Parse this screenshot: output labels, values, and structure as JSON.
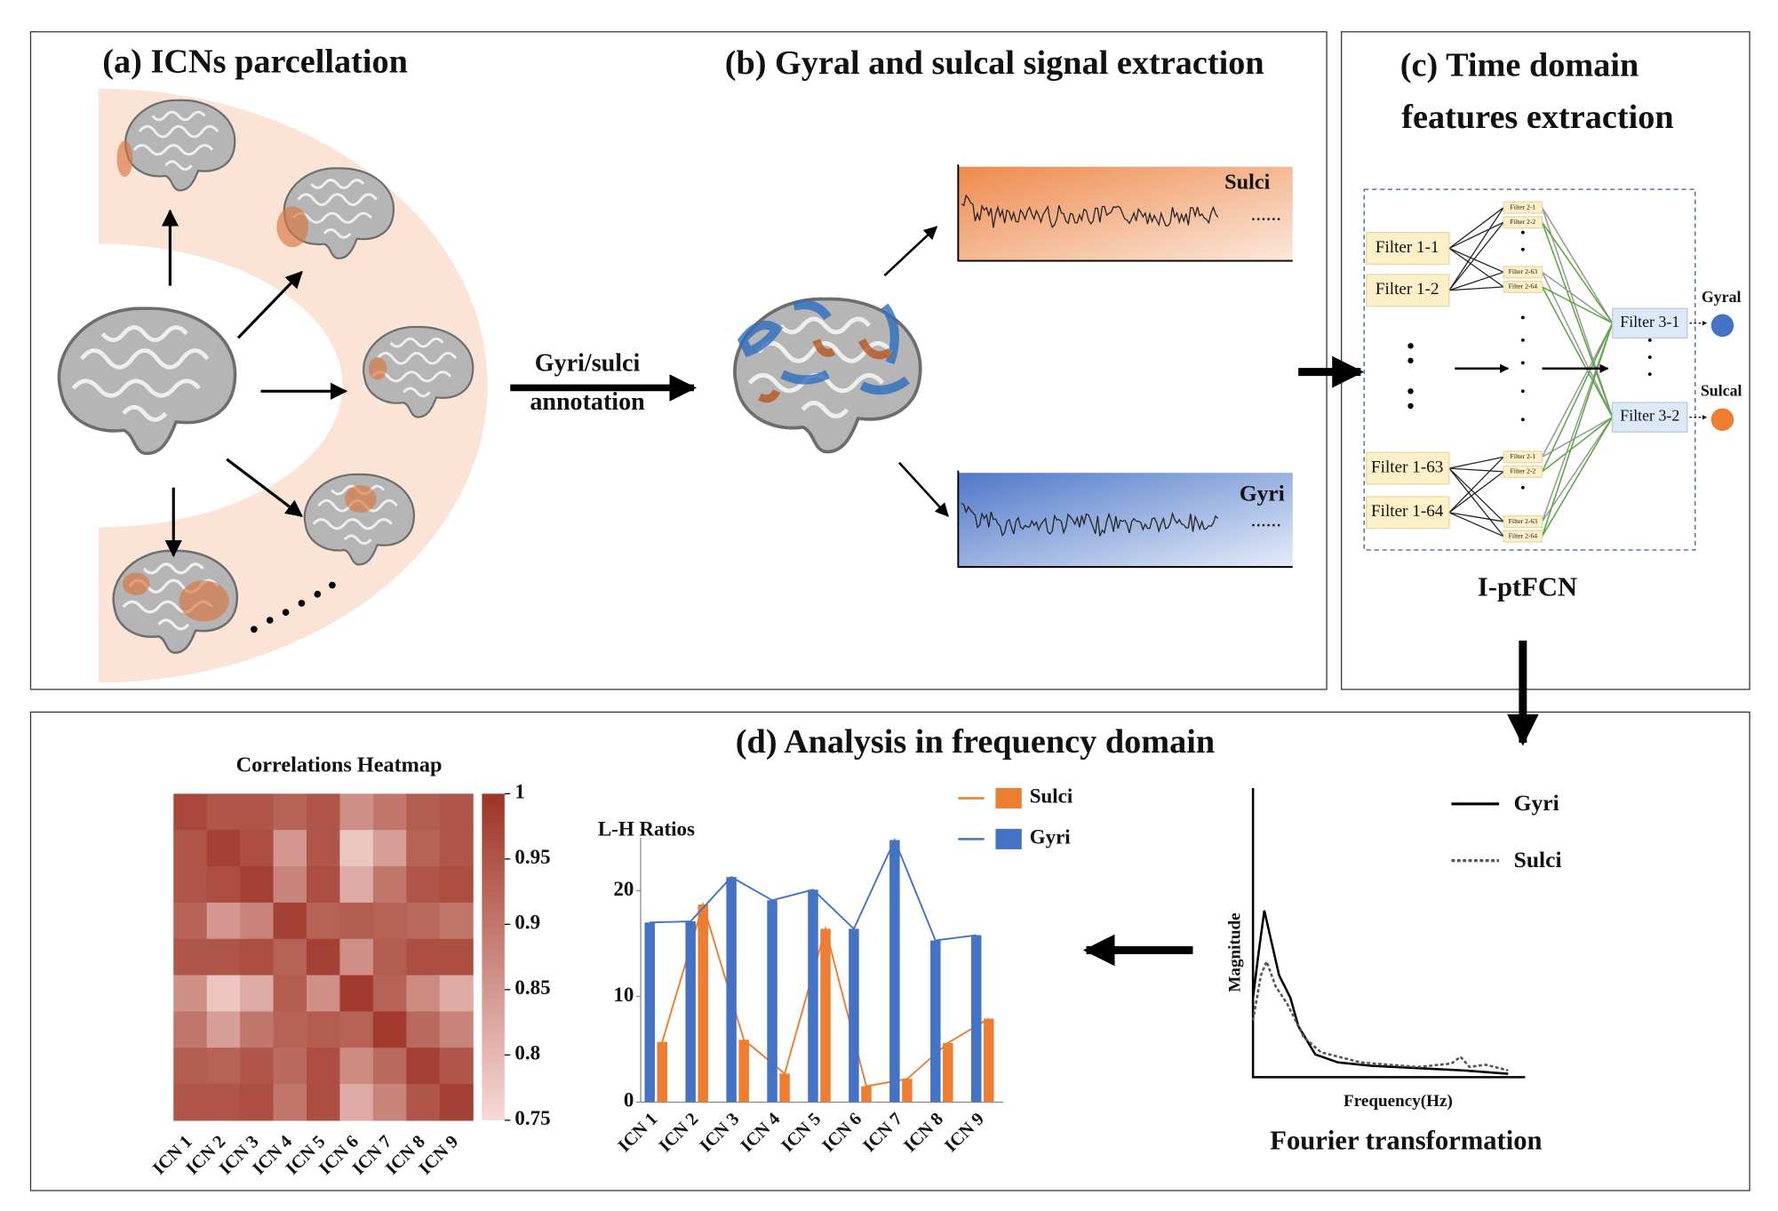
{
  "panels": {
    "a": {
      "title": "(a) ICNs parcellation"
    },
    "b": {
      "title": "(b) Gyral and sulcal signal extraction",
      "arrow_label": [
        "Gyri/sulci",
        "annotation"
      ],
      "signals": [
        "Sulci",
        "Gyri"
      ]
    },
    "c": {
      "title": [
        "(c) Time domain",
        "features extraction"
      ],
      "filters1": [
        "Filter 1-1",
        "Filter 1-2",
        "Filter 1-63",
        "Filter 1-64"
      ],
      "filters2": [
        "Filter 2-1",
        "Filter 2-2",
        "Filter 2-63",
        "Filter 2-64"
      ],
      "filters3": [
        "Filter 3-1",
        "Filter 3-2"
      ],
      "outputs": [
        "Gyral",
        "Sulcal"
      ],
      "caption": "I-ptFCN"
    },
    "d": {
      "title": "(d) Analysis in frequency domain"
    }
  },
  "heatmap": {
    "title": "Correlations Heatmap",
    "categories": [
      "ICN 1",
      "ICN 2",
      "ICN 3",
      "ICN 4",
      "ICN 5",
      "ICN 6",
      "ICN 7",
      "ICN 8",
      "ICN 9"
    ],
    "matrix": [
      [
        0.97,
        0.95,
        0.95,
        0.93,
        0.95,
        0.86,
        0.9,
        0.94,
        0.95
      ],
      [
        0.95,
        0.98,
        0.96,
        0.85,
        0.95,
        0.78,
        0.84,
        0.93,
        0.95
      ],
      [
        0.95,
        0.96,
        0.98,
        0.88,
        0.96,
        0.82,
        0.9,
        0.95,
        0.96
      ],
      [
        0.93,
        0.85,
        0.88,
        0.98,
        0.93,
        0.94,
        0.93,
        0.92,
        0.9
      ],
      [
        0.95,
        0.95,
        0.96,
        0.93,
        0.98,
        0.86,
        0.94,
        0.96,
        0.96
      ],
      [
        0.86,
        0.78,
        0.82,
        0.94,
        0.86,
        0.99,
        0.93,
        0.87,
        0.82
      ],
      [
        0.9,
        0.84,
        0.9,
        0.93,
        0.94,
        0.93,
        0.99,
        0.92,
        0.88
      ],
      [
        0.94,
        0.93,
        0.95,
        0.92,
        0.96,
        0.87,
        0.92,
        0.98,
        0.95
      ],
      [
        0.95,
        0.95,
        0.96,
        0.9,
        0.96,
        0.82,
        0.88,
        0.95,
        0.98
      ]
    ],
    "clim": [
      0.75,
      1
    ],
    "cticks": [
      0.75,
      0.8,
      0.85,
      0.9,
      0.95,
      1
    ],
    "colors": [
      "#f6d9d5",
      "#9e3426"
    ]
  },
  "ratios": {
    "type": "bar",
    "title": "L-H Ratios",
    "categories": [
      "ICN 1",
      "ICN 2",
      "ICN 3",
      "ICN 4",
      "ICN 5",
      "ICN 6",
      "ICN 7",
      "ICN 8",
      "ICN 9"
    ],
    "series": [
      {
        "name": "Sulci",
        "color": "#ed7d31",
        "values": [
          5.7,
          18.7,
          5.9,
          2.7,
          16.4,
          1.5,
          2.2,
          5.6,
          7.9
        ]
      },
      {
        "name": "Gyri",
        "color": "#4472c4",
        "values": [
          17,
          17.1,
          21.3,
          19.1,
          20.1,
          16.4,
          24.8,
          15.3,
          15.8
        ]
      }
    ],
    "ylim": [
      0,
      25
    ],
    "yticks": [
      0,
      10,
      20
    ]
  },
  "fourier": {
    "legend": [
      "Gyri",
      "Sulci"
    ],
    "xlabel": "Frequency(Hz)",
    "ylabel": "Magnitude",
    "caption": "Fourier transformation"
  }
}
